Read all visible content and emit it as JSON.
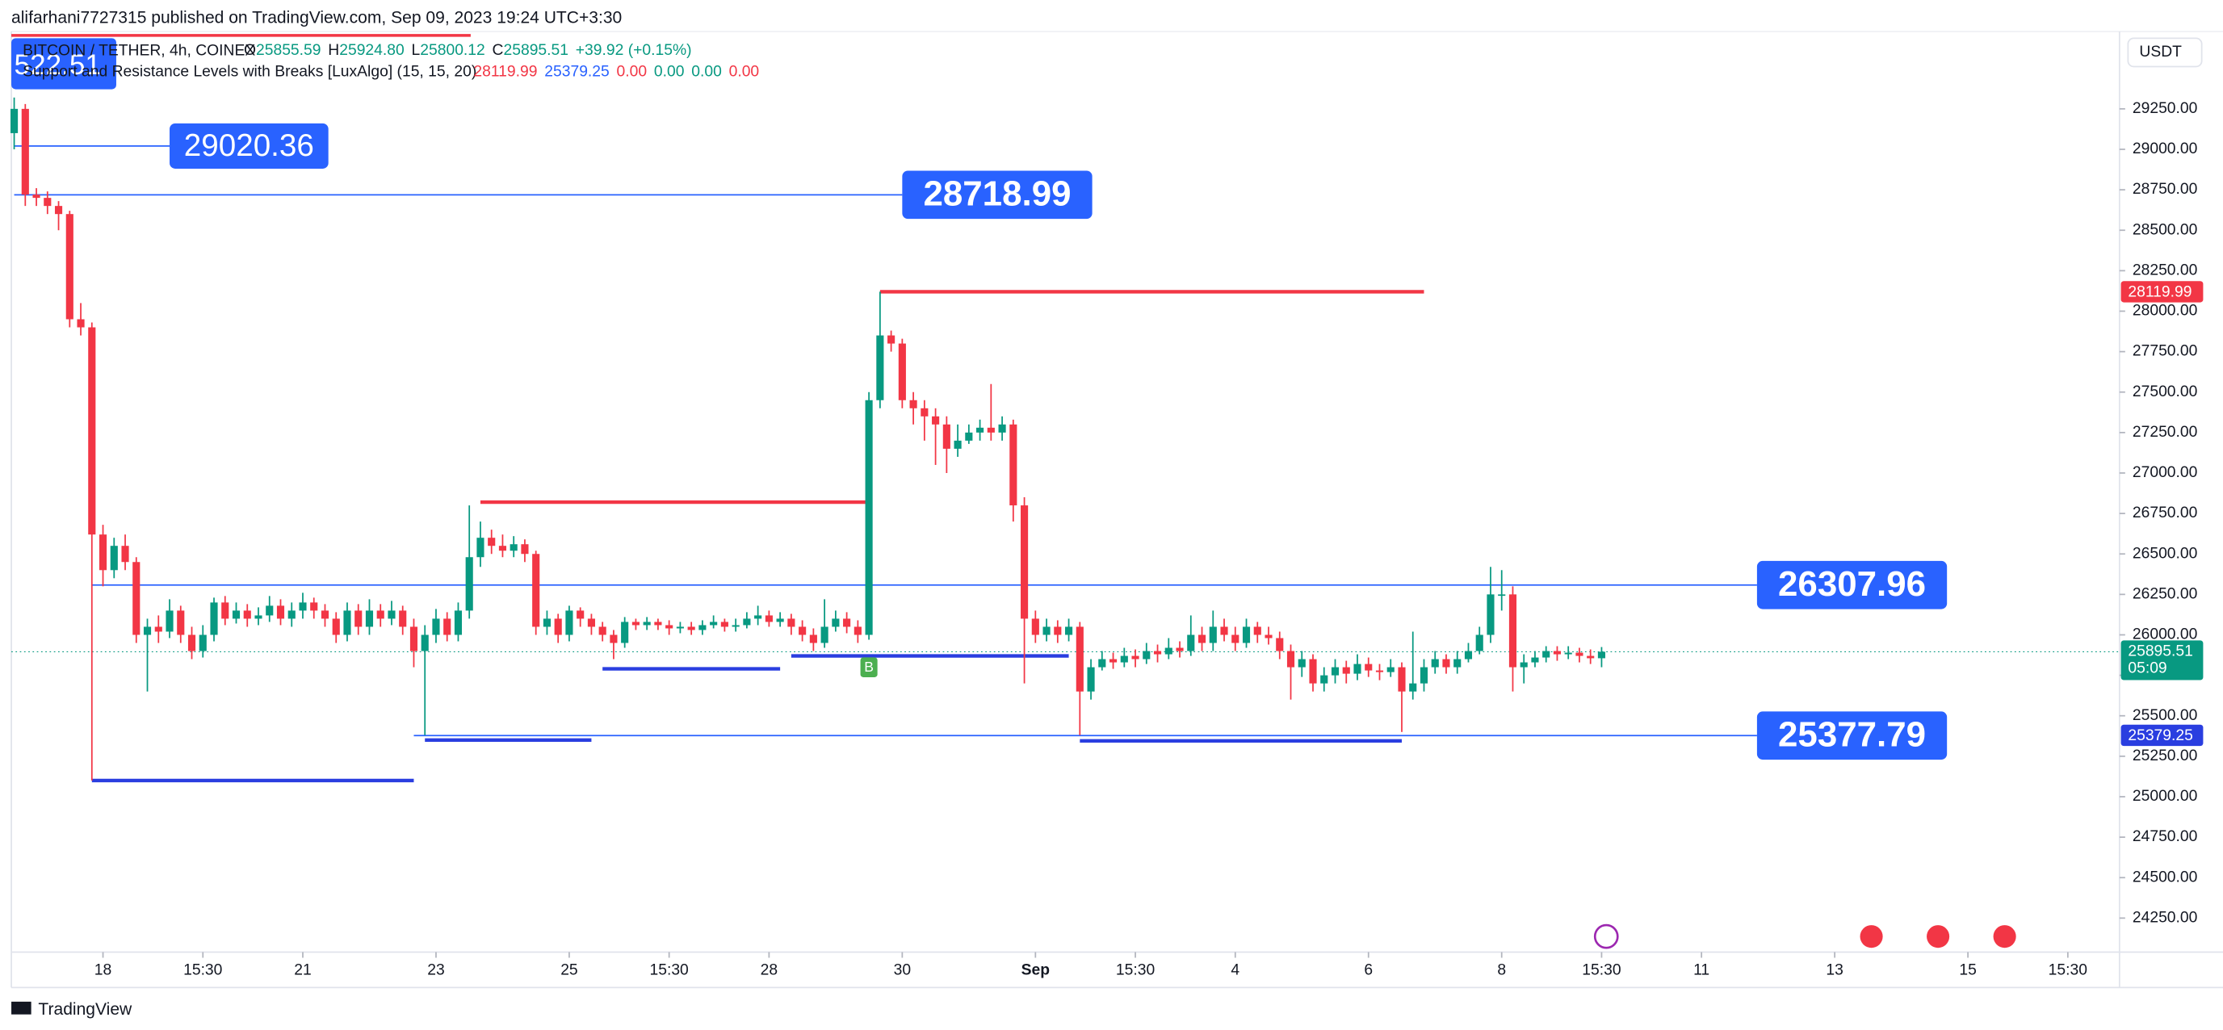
{
  "header": {
    "published": "alifarhani7727315 published on TradingView.com, Sep 09, 2023 19:24 UTC+3:30",
    "symbol": "BITCOIN / TETHER, 4h, COINEX",
    "ohlc": [
      {
        "key": "O",
        "value": 25855.59
      },
      {
        "key": "H",
        "value": 25924.8,
        "label": "25924.80"
      },
      {
        "key": "L",
        "value": 25800.12
      },
      {
        "key": "C",
        "value": 25895.51
      }
    ],
    "change": "+39.92 (+0.15%)",
    "indicator": "Support and Resistance Levels with Breaks [LuxAlgo] (15, 15, 20)",
    "indicator_values": [
      {
        "label": "28119.99",
        "color": "#f23645"
      },
      {
        "label": "25379.25",
        "color": "#2962ff"
      },
      {
        "label": "0.00",
        "color": "#f23645"
      },
      {
        "label": "0.00",
        "color": "#089981"
      },
      {
        "label": "0.00",
        "color": "#089981"
      },
      {
        "label": "0.00",
        "color": "#f23645"
      }
    ],
    "clipped_label": "522.51",
    "currency": "USDT",
    "footer": "TradingView"
  },
  "chart_data": {
    "type": "candlestick",
    "up_color": "#089981",
    "down_color": "#f23645",
    "open": [
      29100,
      29250,
      28720,
      28700,
      28650,
      28600,
      27950,
      27900,
      26620,
      26400,
      26550,
      26450,
      26000,
      26050,
      26020,
      26150,
      26000,
      25900,
      26000,
      26200,
      26100,
      26150,
      26100,
      26120,
      26180,
      26100,
      26150,
      26200,
      26150,
      26100,
      26000,
      26150,
      26050,
      26150,
      26100,
      26150,
      26050,
      25900,
      26000,
      26100,
      26000,
      26150,
      26480,
      26600,
      26550,
      26520,
      26560,
      26500,
      26050,
      26100,
      26000,
      26150,
      26100,
      26050,
      26000,
      25950,
      26080,
      26060,
      26080,
      26060,
      26040,
      26050,
      26030,
      26060,
      26080,
      26050,
      26060,
      26100,
      26120,
      26080,
      26100,
      26050,
      26000,
      25950,
      26050,
      26100,
      26050,
      26000,
      27450,
      27850,
      27800,
      27450,
      27400,
      27350,
      27300,
      27150,
      27200,
      27250,
      27280,
      27250,
      27300,
      26800,
      26100,
      26000,
      26050,
      26000,
      26050,
      25650,
      25800,
      25850,
      25830,
      25870,
      25850,
      25900,
      25880,
      25920,
      25900,
      26000,
      25950,
      26050,
      26000,
      25950,
      26050,
      26000,
      25980,
      25900,
      25800,
      25850,
      25700,
      25750,
      25800,
      25760,
      25820,
      25780,
      25770,
      25800,
      25650,
      25700,
      25800,
      25850,
      25800,
      25850,
      25900,
      26000,
      26250,
      26250,
      25800,
      25830,
      25860,
      25900,
      25880,
      25890,
      25870,
      25855.59
    ],
    "high": [
      29320,
      29280,
      28760,
      28740,
      28680,
      28620,
      28050,
      27930,
      26680,
      26600,
      26620,
      26480,
      26100,
      26120,
      26220,
      26180,
      26050,
      26060,
      26230,
      26240,
      26200,
      26190,
      26170,
      26240,
      26220,
      26200,
      26260,
      26230,
      26190,
      26140,
      26200,
      26190,
      26220,
      26190,
      26210,
      26180,
      26100,
      26060,
      26160,
      26140,
      26200,
      26800,
      26700,
      26650,
      26620,
      26610,
      26590,
      26520,
      26150,
      26130,
      26180,
      26170,
      26130,
      26080,
      26030,
      26110,
      26100,
      26110,
      26100,
      26090,
      26080,
      26080,
      26090,
      26120,
      26100,
      26100,
      26140,
      26180,
      26150,
      26140,
      26130,
      26090,
      26040,
      26220,
      26150,
      26140,
      26090,
      27500,
      28120,
      27880,
      27830,
      27500,
      27450,
      27400,
      27350,
      27300,
      27300,
      27330,
      27550,
      27350,
      27330,
      26850,
      26150,
      26100,
      26090,
      26100,
      26080,
      25850,
      25900,
      25890,
      25920,
      25910,
      25950,
      25940,
      25980,
      25960,
      26120,
      26050,
      26150,
      26100,
      26050,
      26100,
      26080,
      26050,
      26020,
      25940,
      25900,
      25880,
      25800,
      25850,
      25840,
      25880,
      25860,
      25820,
      25850,
      25830,
      26020,
      25850,
      25900,
      25880,
      25900,
      25950,
      26050,
      26420,
      26400,
      26300,
      25880,
      25900,
      25930,
      25930,
      25930,
      25920,
      25910,
      25924.8
    ],
    "low": [
      29000,
      28650,
      28650,
      28600,
      28500,
      27900,
      27850,
      25100,
      26300,
      26350,
      26400,
      25950,
      25650,
      25950,
      25980,
      25950,
      25850,
      25860,
      25960,
      26060,
      26070,
      26050,
      26060,
      26080,
      26060,
      26050,
      26100,
      26100,
      26050,
      25950,
      25960,
      26000,
      26000,
      26050,
      26060,
      26000,
      25800,
      25380,
      25950,
      25960,
      25960,
      26100,
      26420,
      26500,
      26480,
      26480,
      26450,
      26000,
      26000,
      25950,
      25960,
      26050,
      26000,
      25960,
      25850,
      25920,
      26030,
      26030,
      26030,
      26000,
      26010,
      26000,
      26000,
      26040,
      26020,
      26020,
      26040,
      26060,
      26050,
      26050,
      26000,
      25960,
      25900,
      25920,
      26020,
      26010,
      25950,
      25970,
      27400,
      27750,
      27400,
      27300,
      27200,
      27050,
      27000,
      27100,
      27180,
      27200,
      27200,
      27200,
      26700,
      25700,
      25950,
      25960,
      25950,
      25960,
      25380,
      25600,
      25780,
      25790,
      25800,
      25800,
      25820,
      25830,
      25850,
      25860,
      25870,
      25900,
      25900,
      25960,
      25900,
      25920,
      25950,
      25940,
      25850,
      25600,
      25740,
      25650,
      25650,
      25700,
      25700,
      25720,
      25740,
      25720,
      25740,
      25400,
      25600,
      25650,
      25760,
      25760,
      25760,
      25830,
      25880,
      25950,
      26150,
      25650,
      25700,
      25800,
      25830,
      25840,
      25850,
      25830,
      25820,
      25800.12
    ],
    "close": [
      29250,
      28720,
      28700,
      28650,
      28600,
      27950,
      27900,
      26620,
      26400,
      26550,
      26450,
      26000,
      26050,
      26020,
      26150,
      26000,
      25900,
      26000,
      26200,
      26100,
      26150,
      26100,
      26120,
      26180,
      26100,
      26150,
      26200,
      26150,
      26100,
      26000,
      26150,
      26050,
      26150,
      26100,
      26150,
      26050,
      25900,
      26000,
      26100,
      26000,
      26150,
      26480,
      26600,
      26550,
      26520,
      26560,
      26500,
      26050,
      26100,
      26000,
      26150,
      26100,
      26050,
      26000,
      25950,
      26080,
      26060,
      26080,
      26060,
      26040,
      26050,
      26030,
      26060,
      26080,
      26050,
      26060,
      26100,
      26120,
      26080,
      26100,
      26050,
      26000,
      25950,
      26050,
      26100,
      26050,
      26000,
      27450,
      27850,
      27800,
      27450,
      27400,
      27350,
      27300,
      27150,
      27200,
      27250,
      27280,
      27250,
      27300,
      26800,
      26100,
      26000,
      26050,
      26000,
      26050,
      25650,
      25800,
      25850,
      25830,
      25870,
      25850,
      25900,
      25880,
      25920,
      25900,
      26000,
      25950,
      26050,
      26000,
      25950,
      26050,
      26000,
      25980,
      25900,
      25800,
      25850,
      25700,
      25750,
      25800,
      25760,
      25820,
      25780,
      25770,
      25800,
      25650,
      25700,
      25800,
      25850,
      25800,
      25850,
      25900,
      26000,
      26250,
      26250,
      25800,
      25830,
      25860,
      25900,
      25880,
      25890,
      25870,
      25855.59,
      25895.51
    ],
    "xlim": [
      0,
      190
    ],
    "xticks": [
      {
        "value": 8,
        "label": "18"
      },
      {
        "value": 17,
        "label": "15:30"
      },
      {
        "value": 26,
        "label": "21"
      },
      {
        "value": 38,
        "label": "23"
      },
      {
        "value": 50,
        "label": "25"
      },
      {
        "value": 59,
        "label": "15:30"
      },
      {
        "value": 68,
        "label": "28"
      },
      {
        "value": 80,
        "label": "30"
      },
      {
        "value": 92,
        "label": "Sep"
      },
      {
        "value": 101,
        "label": "15:30"
      },
      {
        "value": 110,
        "label": "4"
      },
      {
        "value": 122,
        "label": "6"
      },
      {
        "value": 134,
        "label": "8"
      },
      {
        "value": 143,
        "label": "15:30"
      },
      {
        "value": 152,
        "label": "11"
      },
      {
        "value": 164,
        "label": "13"
      },
      {
        "value": 176,
        "label": "15"
      },
      {
        "value": 185,
        "label": "15:30"
      }
    ],
    "ylim": [
      24040,
      29730
    ],
    "yticks": [
      {
        "value": 24250,
        "label": "24250.00"
      },
      {
        "value": 24500,
        "label": "24500.00"
      },
      {
        "value": 24750,
        "label": "24750.00"
      },
      {
        "value": 25000,
        "label": "25000.00"
      },
      {
        "value": 25250,
        "label": "25250.00"
      },
      {
        "value": 25500,
        "label": "25500.00"
      },
      {
        "value": 25750,
        "label": "25750.00"
      },
      {
        "value": 26000,
        "label": "26000.00"
      },
      {
        "value": 26250,
        "label": "26250.00"
      },
      {
        "value": 26500,
        "label": "26500.00"
      },
      {
        "value": 26750,
        "label": "26750.00"
      },
      {
        "value": 27000,
        "label": "27000.00"
      },
      {
        "value": 27250,
        "label": "27250.00"
      },
      {
        "value": 27500,
        "label": "27500.00"
      },
      {
        "value": 27750,
        "label": "27750.00"
      },
      {
        "value": 28000,
        "label": "28000.00"
      },
      {
        "value": 28250,
        "label": "28250.00"
      },
      {
        "value": 28500,
        "label": "28500.00"
      },
      {
        "value": 28750,
        "label": "28750.00"
      },
      {
        "value": 29000,
        "label": "29000.00"
      },
      {
        "value": 29250,
        "label": "29250.00"
      }
    ],
    "segments": [
      {
        "value": 26820,
        "x": [
          42,
          77
        ],
        "color": "#f23645"
      },
      {
        "value": 28120,
        "x": [
          78,
          127
        ],
        "color": "#f23645"
      },
      {
        "value": 25100,
        "x": [
          7,
          36
        ],
        "color": "#2a3ee0"
      },
      {
        "value": 25350,
        "x": [
          37,
          52
        ],
        "color": "#2a3ee0"
      },
      {
        "value": 25790,
        "x": [
          53,
          69
        ],
        "color": "#2a3ee0"
      },
      {
        "value": 25870,
        "x": [
          70,
          95
        ],
        "color": "#2a3ee0"
      },
      {
        "value": 25345,
        "x": [
          96,
          125
        ],
        "color": "#2a3ee0"
      }
    ],
    "levels": [
      {
        "value": 29020.36,
        "x": [
          0,
          14
        ]
      },
      {
        "value": 28718.99,
        "x": [
          0,
          80
        ]
      },
      {
        "value": 26307.96,
        "x": [
          7,
          157
        ]
      },
      {
        "value": 25377.79,
        "x": [
          36,
          157
        ]
      }
    ],
    "price_tags": [
      {
        "value": 28119.99,
        "label": "28119.99",
        "color": "#f23645"
      },
      {
        "value": 25379.25,
        "label": "25379.25",
        "color": "#2a3ee0"
      },
      {
        "value": 25895.51,
        "label": "25895.51",
        "color": "#089981",
        "countdown": "05:09"
      }
    ],
    "signals": [
      {
        "x": 77,
        "text": "B",
        "color": "#4caf50"
      }
    ]
  }
}
